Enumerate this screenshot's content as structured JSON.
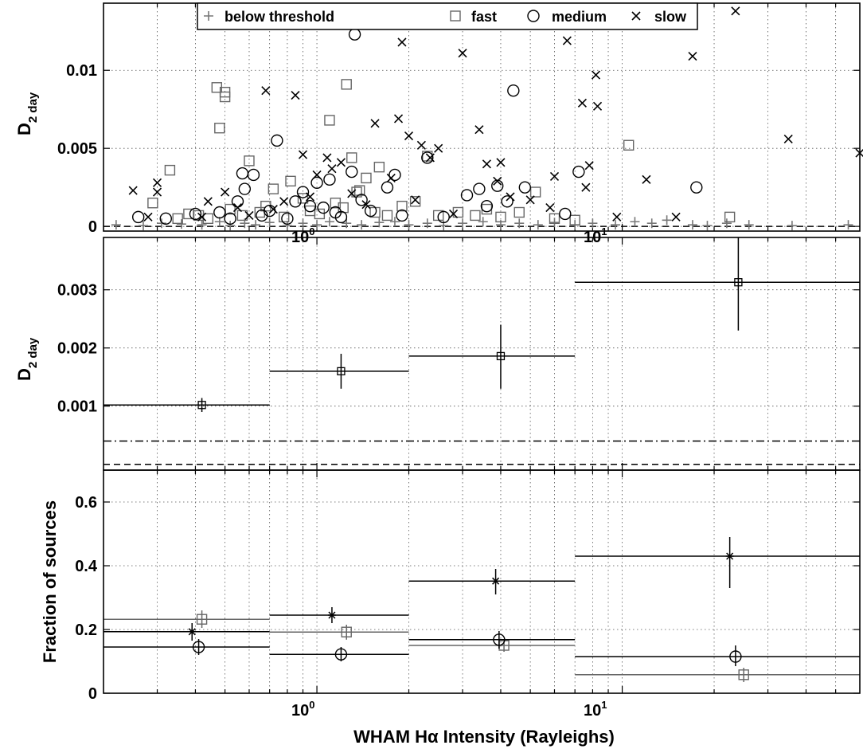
{
  "xlabel": "WHAM Hα Intensity (Rayleighs)",
  "x_ticks": [
    "10",
    "10"
  ],
  "x_tick_exponents": [
    "0",
    "1"
  ],
  "colors": {
    "black": "#000000",
    "gray": "#666666",
    "threshold_gray": "#777777"
  },
  "chart_data": [
    {
      "type": "scatter",
      "panel": "top",
      "ylabel": "D",
      "ylabel_sub": "2 day",
      "xscale": "log",
      "xlim": [
        0.2,
        60
      ],
      "ylim": [
        -0.0003,
        0.0143
      ],
      "yticks": [
        "0",
        "0.005",
        "0.01"
      ],
      "legend": {
        "placement": "top",
        "entries": [
          {
            "name": "below threshold",
            "marker": "plus",
            "color": "#777777"
          },
          {
            "name": "fast",
            "marker": "square",
            "color": "#666666"
          },
          {
            "name": "medium",
            "marker": "circle",
            "color": "#000000"
          },
          {
            "name": "slow",
            "marker": "x",
            "color": "#000000"
          }
        ]
      },
      "series": [
        {
          "name": "below threshold",
          "points": [
            [
              0.22,
              0.0001
            ],
            [
              0.27,
              5e-05
            ],
            [
              0.31,
              0.0002
            ],
            [
              0.36,
              0.00015
            ],
            [
              0.42,
              0.0001
            ],
            [
              0.48,
              0.0003
            ],
            [
              0.52,
              5e-05
            ],
            [
              0.58,
              0.0002
            ],
            [
              0.63,
              0.0001
            ],
            [
              0.7,
              0.00025
            ],
            [
              0.8,
              5e-05
            ],
            [
              0.9,
              0.0002
            ],
            [
              1.0,
              0.0001
            ],
            [
              1.1,
              0.0003
            ],
            [
              1.25,
              0.0002
            ],
            [
              1.4,
              0.0001
            ],
            [
              1.6,
              0.00025
            ],
            [
              1.8,
              0.0003
            ],
            [
              2.0,
              0.0001
            ],
            [
              2.3,
              0.0002
            ],
            [
              2.6,
              5e-05
            ],
            [
              3.0,
              0.0002
            ],
            [
              3.5,
              0.0003
            ],
            [
              4.0,
              0.0001
            ],
            [
              4.6,
              0.0002
            ],
            [
              5.3,
              0.0001
            ],
            [
              6.0,
              0.00025
            ],
            [
              7.0,
              0.0001
            ],
            [
              8.0,
              0.0002
            ],
            [
              9.5,
              0.0001
            ],
            [
              11.0,
              0.0003
            ],
            [
              12.5,
              0.0002
            ],
            [
              14.0,
              0.0004
            ],
            [
              17.0,
              0.0001
            ],
            [
              19.0,
              5e-05
            ],
            [
              22.0,
              0.0002
            ],
            [
              26.0,
              0.0001
            ],
            [
              36.0,
              5e-05
            ],
            [
              55.0,
              0.0001
            ]
          ]
        },
        {
          "name": "fast",
          "points": [
            [
              0.29,
              0.0015
            ],
            [
              0.33,
              0.0036
            ],
            [
              0.35,
              0.0005
            ],
            [
              0.38,
              0.0008
            ],
            [
              0.41,
              0.0007
            ],
            [
              0.44,
              0.0005
            ],
            [
              0.47,
              0.0089
            ],
            [
              0.48,
              0.0063
            ],
            [
              0.5,
              0.0083
            ],
            [
              0.5,
              0.0086
            ],
            [
              0.52,
              0.0011
            ],
            [
              0.57,
              0.0007
            ],
            [
              0.6,
              0.0042
            ],
            [
              0.65,
              0.0009
            ],
            [
              0.68,
              0.0013
            ],
            [
              0.72,
              0.0024
            ],
            [
              0.78,
              0.0006
            ],
            [
              0.82,
              0.0029
            ],
            [
              0.9,
              0.0018
            ],
            [
              0.95,
              0.001
            ],
            [
              1.02,
              0.0008
            ],
            [
              1.1,
              0.0068
            ],
            [
              1.15,
              0.0015
            ],
            [
              1.22,
              0.0012
            ],
            [
              1.25,
              0.0091
            ],
            [
              1.3,
              0.0044
            ],
            [
              1.35,
              0.0022
            ],
            [
              1.38,
              0.0023
            ],
            [
              1.45,
              0.0031
            ],
            [
              1.55,
              0.0009
            ],
            [
              1.6,
              0.0038
            ],
            [
              1.7,
              0.0007
            ],
            [
              1.9,
              0.0013
            ],
            [
              2.1,
              0.0016
            ],
            [
              2.3,
              0.0045
            ],
            [
              2.5,
              0.0007
            ],
            [
              2.9,
              0.0009
            ],
            [
              3.3,
              0.0007
            ],
            [
              3.6,
              0.0011
            ],
            [
              4.0,
              0.0006
            ],
            [
              4.6,
              0.0009
            ],
            [
              5.2,
              0.0022
            ],
            [
              6.0,
              0.0005
            ],
            [
              7.0,
              0.0004
            ],
            [
              10.5,
              0.0052
            ],
            [
              22.5,
              0.0006
            ]
          ]
        },
        {
          "name": "medium",
          "points": [
            [
              0.26,
              0.0006
            ],
            [
              0.32,
              0.0005
            ],
            [
              0.4,
              0.0008
            ],
            [
              0.48,
              0.0009
            ],
            [
              0.52,
              0.0005
            ],
            [
              0.55,
              0.0016
            ],
            [
              0.57,
              0.0034
            ],
            [
              0.58,
              0.0024
            ],
            [
              0.62,
              0.0033
            ],
            [
              0.66,
              0.0007
            ],
            [
              0.7,
              0.001
            ],
            [
              0.74,
              0.0055
            ],
            [
              0.8,
              0.0005
            ],
            [
              0.85,
              0.0016
            ],
            [
              0.9,
              0.0022
            ],
            [
              0.95,
              0.0013
            ],
            [
              1.0,
              0.0028
            ],
            [
              1.05,
              0.0012
            ],
            [
              1.1,
              0.003
            ],
            [
              1.15,
              0.0009
            ],
            [
              1.2,
              0.0006
            ],
            [
              1.3,
              0.0035
            ],
            [
              1.33,
              0.0123
            ],
            [
              1.4,
              0.0017
            ],
            [
              1.5,
              0.001
            ],
            [
              1.7,
              0.0025
            ],
            [
              1.8,
              0.0033
            ],
            [
              1.9,
              0.0007
            ],
            [
              2.3,
              0.0044
            ],
            [
              2.6,
              0.0006
            ],
            [
              3.1,
              0.002
            ],
            [
              3.4,
              0.0024
            ],
            [
              3.6,
              0.0013
            ],
            [
              3.9,
              0.0026
            ],
            [
              4.2,
              0.0016
            ],
            [
              4.4,
              0.0087
            ],
            [
              4.8,
              0.0025
            ],
            [
              6.5,
              0.0008
            ],
            [
              7.2,
              0.0035
            ],
            [
              17.5,
              0.0025
            ]
          ]
        },
        {
          "name": "slow",
          "points": [
            [
              0.25,
              0.0023
            ],
            [
              0.28,
              0.0006
            ],
            [
              0.3,
              0.0022
            ],
            [
              0.3,
              0.0028
            ],
            [
              0.42,
              0.0006
            ],
            [
              0.44,
              0.0016
            ],
            [
              0.5,
              0.0022
            ],
            [
              0.55,
              0.0012
            ],
            [
              0.6,
              0.0007
            ],
            [
              0.68,
              0.0087
            ],
            [
              0.72,
              0.0011
            ],
            [
              0.78,
              0.0016
            ],
            [
              0.85,
              0.0084
            ],
            [
              0.9,
              0.0046
            ],
            [
              0.95,
              0.0019
            ],
            [
              1.0,
              0.0033
            ],
            [
              1.08,
              0.0044
            ],
            [
              1.12,
              0.0037
            ],
            [
              1.2,
              0.0041
            ],
            [
              1.3,
              0.0021
            ],
            [
              1.45,
              0.0014
            ],
            [
              1.55,
              0.0066
            ],
            [
              1.75,
              0.0031
            ],
            [
              1.85,
              0.0069
            ],
            [
              1.9,
              0.0118
            ],
            [
              2.0,
              0.0058
            ],
            [
              2.1,
              0.0017
            ],
            [
              2.2,
              0.0052
            ],
            [
              2.35,
              0.0044
            ],
            [
              2.5,
              0.005
            ],
            [
              2.8,
              0.0008
            ],
            [
              3.0,
              0.0111
            ],
            [
              3.4,
              0.0062
            ],
            [
              3.6,
              0.004
            ],
            [
              3.9,
              0.0029
            ],
            [
              4.0,
              0.0041
            ],
            [
              4.3,
              0.0019
            ],
            [
              5.0,
              0.0017
            ],
            [
              5.8,
              0.0012
            ],
            [
              6.0,
              0.0032
            ],
            [
              6.6,
              0.0119
            ],
            [
              7.4,
              0.0079
            ],
            [
              7.6,
              0.0025
            ],
            [
              7.8,
              0.0039
            ],
            [
              8.2,
              0.0097
            ],
            [
              8.3,
              0.0077
            ],
            [
              9.6,
              0.0006
            ],
            [
              12.0,
              0.003
            ],
            [
              15.0,
              0.0006
            ],
            [
              17.0,
              0.0109
            ],
            [
              23.5,
              0.0138
            ],
            [
              35.0,
              0.0056
            ],
            [
              60.0,
              0.0047
            ]
          ]
        }
      ],
      "reference_line": {
        "style": "dashed",
        "y": 0.0
      }
    },
    {
      "type": "line",
      "panel": "middle",
      "ylabel": "D",
      "ylabel_sub": "2 day",
      "xscale": "log",
      "xlim": [
        0.2,
        60
      ],
      "ylim": [
        -0.0001,
        0.0039
      ],
      "yticks": [
        "0.001",
        "0.002",
        "0.003"
      ],
      "series": [
        {
          "name": "",
          "marker": "square-plus",
          "points": [
            {
              "x": 0.42,
              "y": 0.00102,
              "xlo": 0.2,
              "xhi": 0.7,
              "ylo": 0.0009,
              "yhi": 0.00114
            },
            {
              "x": 1.2,
              "y": 0.0016,
              "xlo": 0.7,
              "xhi": 2.0,
              "ylo": 0.0013,
              "yhi": 0.0019
            },
            {
              "x": 4.0,
              "y": 0.00186,
              "xlo": 2.0,
              "xhi": 7.0,
              "ylo": 0.0013,
              "yhi": 0.0024
            },
            {
              "x": 24.0,
              "y": 0.00313,
              "xlo": 7.0,
              "xhi": 60.0,
              "ylo": 0.0023,
              "yhi": 0.004
            }
          ]
        }
      ],
      "reference_lines": [
        {
          "style": "dashdot",
          "y": 0.0004
        },
        {
          "style": "dashed",
          "y": 0.0
        }
      ]
    },
    {
      "type": "line",
      "panel": "bottom",
      "ylabel": "Fraction of sources",
      "xscale": "log",
      "xlim": [
        0.2,
        60
      ],
      "ylim": [
        0,
        0.7
      ],
      "yticks": [
        "0",
        "0.2",
        "0.4",
        "0.6"
      ],
      "series": [
        {
          "name": "",
          "marker": "square",
          "color": "#666666",
          "points": [
            {
              "x": 0.42,
              "y": 0.232,
              "xlo": 0.2,
              "xhi": 0.7,
              "ylo": 0.205,
              "yhi": 0.26
            },
            {
              "x": 1.25,
              "y": 0.192,
              "xlo": 0.7,
              "xhi": 2.0,
              "ylo": 0.168,
              "yhi": 0.215
            },
            {
              "x": 4.1,
              "y": 0.15,
              "xlo": 2.0,
              "xhi": 7.0,
              "ylo": 0.13,
              "yhi": 0.17
            },
            {
              "x": 25.0,
              "y": 0.058,
              "xlo": 7.0,
              "xhi": 60.0,
              "ylo": 0.035,
              "yhi": 0.08
            }
          ]
        },
        {
          "name": "",
          "marker": "circle",
          "color": "#000000",
          "points": [
            {
              "x": 0.41,
              "y": 0.145,
              "xlo": 0.2,
              "xhi": 0.7,
              "ylo": 0.12,
              "yhi": 0.17
            },
            {
              "x": 1.2,
              "y": 0.122,
              "xlo": 0.7,
              "xhi": 2.0,
              "ylo": 0.1,
              "yhi": 0.145
            },
            {
              "x": 3.95,
              "y": 0.168,
              "xlo": 2.0,
              "xhi": 7.0,
              "ylo": 0.14,
              "yhi": 0.195
            },
            {
              "x": 23.5,
              "y": 0.115,
              "xlo": 7.0,
              "xhi": 60.0,
              "ylo": 0.085,
              "yhi": 0.15
            }
          ]
        },
        {
          "name": "",
          "marker": "star",
          "color": "#000000",
          "points": [
            {
              "x": 0.39,
              "y": 0.193,
              "xlo": 0.2,
              "xhi": 0.7,
              "ylo": 0.165,
              "yhi": 0.22
            },
            {
              "x": 1.12,
              "y": 0.245,
              "xlo": 0.7,
              "xhi": 2.0,
              "ylo": 0.22,
              "yhi": 0.27
            },
            {
              "x": 3.85,
              "y": 0.352,
              "xlo": 2.0,
              "xhi": 7.0,
              "ylo": 0.31,
              "yhi": 0.39
            },
            {
              "x": 22.5,
              "y": 0.43,
              "xlo": 7.0,
              "xhi": 60.0,
              "ylo": 0.33,
              "yhi": 0.49
            }
          ]
        }
      ]
    }
  ]
}
